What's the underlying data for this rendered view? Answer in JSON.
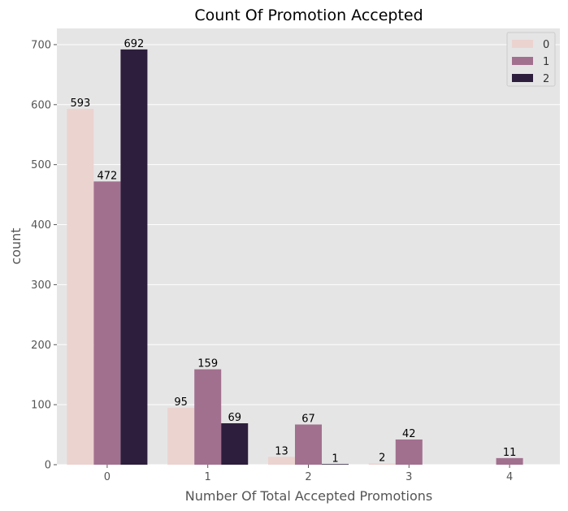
{
  "chart_data": {
    "type": "bar",
    "title": "Count Of Promotion Accepted",
    "xlabel": "Number Of Total Accepted Promotions",
    "ylabel": "count",
    "categories": [
      "0",
      "1",
      "2",
      "3",
      "4"
    ],
    "yticks": [
      "0",
      "100",
      "200",
      "300",
      "400",
      "500",
      "600",
      "700"
    ],
    "ylim": [
      0,
      727
    ],
    "grid": true,
    "legend_position": "top-right",
    "series": [
      {
        "name": "0",
        "color": "#ebd3d0",
        "values": [
          593,
          95,
          13,
          2,
          null
        ]
      },
      {
        "name": "1",
        "color": "#a2708f",
        "values": [
          472,
          159,
          67,
          42,
          11
        ]
      },
      {
        "name": "2",
        "color": "#2d1e3d",
        "values": [
          692,
          69,
          1,
          null,
          null
        ]
      }
    ],
    "data_labels": [
      [
        "593",
        "95",
        "13",
        "2",
        ""
      ],
      [
        "472",
        "159",
        "67",
        "42",
        "11"
      ],
      [
        "692",
        "69",
        "1",
        "",
        ""
      ]
    ],
    "background_color": "#e5e5e5"
  }
}
